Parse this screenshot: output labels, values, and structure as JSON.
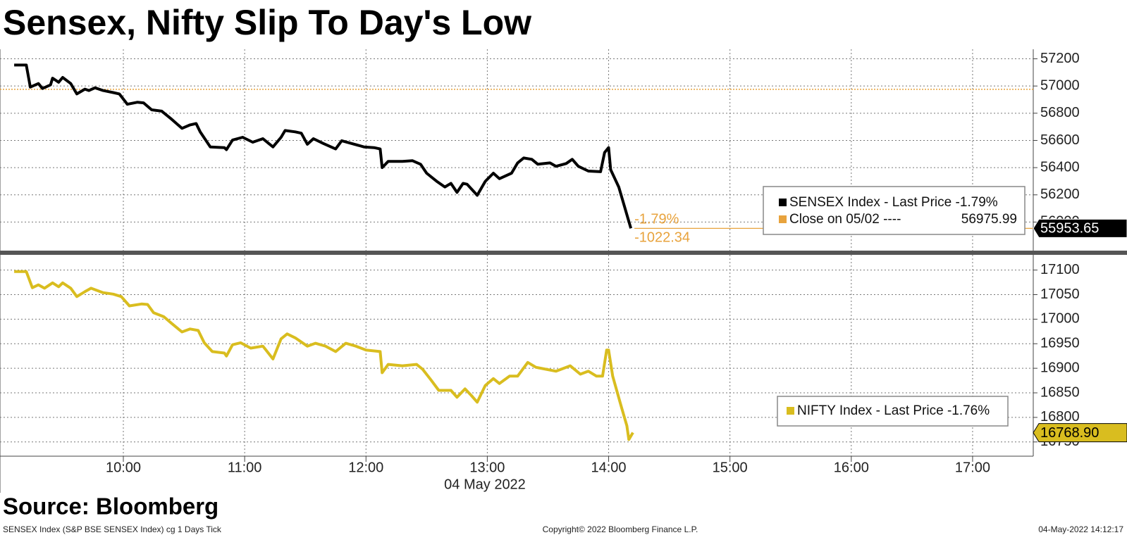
{
  "title": "Sensex, Nifty Slip To Day's Low",
  "source": "Source: Bloomberg",
  "footer": {
    "left": "SENSEX Index (S&P BSE SENSEX Index) cg 1 Days  Tick",
    "center": "Copyright© 2022 Bloomberg Finance L.P.",
    "right": "04-May-2022 14:12:17"
  },
  "chart_data": [
    {
      "type": "line",
      "xlim": [
        "08:59",
        "17:30"
      ],
      "ylim": [
        55790,
        57270
      ],
      "yticks": [
        56000,
        56200,
        56400,
        56600,
        56800,
        57000,
        57200
      ],
      "grid": true,
      "series": [
        {
          "name": "SENSEX Index - Last Price -1.79%",
          "color": "#000000",
          "x": [
            "09:06",
            "09:12",
            "09:14",
            "09:18",
            "09:20",
            "09:24",
            "09:25",
            "09:28",
            "09:30",
            "09:34",
            "09:37",
            "09:41",
            "09:43",
            "09:46",
            "09:50",
            "09:55",
            "09:58",
            "10:02",
            "10:07",
            "10:10",
            "10:14",
            "10:19",
            "10:24",
            "10:29",
            "10:33",
            "10:36",
            "10:38",
            "10:43",
            "10:50",
            "10:51",
            "10:54",
            "10:59",
            "11:04",
            "11:09",
            "11:14",
            "11:18",
            "11:20",
            "11:25",
            "11:28",
            "11:31",
            "11:34",
            "11:39",
            "11:45",
            "11:48",
            "11:53",
            "11:59",
            "12:04",
            "12:07",
            "12:08",
            "12:11",
            "12:18",
            "12:23",
            "12:27",
            "12:30",
            "12:35",
            "12:39",
            "12:42",
            "12:45",
            "12:48",
            "12:50",
            "12:55",
            "12:59",
            "13:03",
            "13:06",
            "13:12",
            "13:15",
            "13:18",
            "13:22",
            "13:25",
            "13:31",
            "13:34",
            "13:39",
            "13:42",
            "13:45",
            "13:50",
            "13:56",
            "13:58",
            "14:00",
            "14:01",
            "14:05",
            "14:08",
            "14:10",
            "14:11"
          ],
          "values": [
            57154,
            57154,
            56992,
            57018,
            56982,
            57008,
            57058,
            57028,
            57063,
            57018,
            56942,
            56977,
            56967,
            56987,
            56967,
            56952,
            56942,
            56866,
            56881,
            56876,
            56825,
            56815,
            56754,
            56689,
            56714,
            56724,
            56663,
            56552,
            56547,
            56532,
            56603,
            56623,
            56587,
            56613,
            56552,
            56623,
            56673,
            56663,
            56653,
            56572,
            56613,
            56577,
            56537,
            56598,
            56577,
            56552,
            56547,
            56537,
            56400,
            56446,
            56446,
            56451,
            56425,
            56359,
            56299,
            56258,
            56284,
            56218,
            56284,
            56278,
            56197,
            56299,
            56359,
            56319,
            56359,
            56435,
            56471,
            56461,
            56425,
            56435,
            56410,
            56430,
            56461,
            56410,
            56375,
            56370,
            56511,
            56547,
            56385,
            56258,
            56106,
            56005,
            55954
          ]
        }
      ],
      "reference_line": {
        "name": "Close on 05/02 ----",
        "value": 56975.99,
        "color": "#e8a33d"
      },
      "last_value": 55953.65,
      "annotations": [
        "-1.79%",
        "-1022.34"
      ]
    },
    {
      "type": "line",
      "xlim": [
        "08:59",
        "17:30"
      ],
      "ylim": [
        16721,
        17131
      ],
      "yticks": [
        16750,
        16800,
        16850,
        16900,
        16950,
        17000,
        17050,
        17100
      ],
      "grid": true,
      "xticks": [
        "10:00",
        "11:00",
        "12:00",
        "13:00",
        "14:00",
        "15:00",
        "16:00",
        "17:00"
      ],
      "x_label": "04 May 2022",
      "series": [
        {
          "name": "NIFTY Index - Last Price -1.76%",
          "color": "#d9bd1f",
          "x": [
            "09:06",
            "09:12",
            "09:15",
            "09:18",
            "09:21",
            "09:25",
            "09:28",
            "09:30",
            "09:34",
            "09:37",
            "09:41",
            "09:44",
            "09:50",
            "09:55",
            "09:59",
            "10:03",
            "10:09",
            "10:12",
            "10:15",
            "10:20",
            "10:24",
            "10:29",
            "10:33",
            "10:37",
            "10:40",
            "10:44",
            "10:50",
            "10:51",
            "10:54",
            "10:58",
            "11:03",
            "11:09",
            "11:14",
            "11:18",
            "11:21",
            "11:25",
            "11:31",
            "11:35",
            "11:40",
            "11:45",
            "11:50",
            "11:55",
            "12:00",
            "12:07",
            "12:08",
            "12:11",
            "12:18",
            "12:25",
            "12:28",
            "12:32",
            "12:36",
            "12:42",
            "12:45",
            "12:49",
            "12:52",
            "12:55",
            "12:59",
            "13:03",
            "13:06",
            "13:11",
            "13:15",
            "13:20",
            "13:24",
            "13:29",
            "13:34",
            "13:41",
            "13:46",
            "13:50",
            "13:54",
            "13:57",
            "13:59",
            "14:00",
            "14:02",
            "14:06",
            "14:09",
            "14:10",
            "14:12"
          ],
          "values": [
            17097,
            17097,
            17064,
            17070,
            17063,
            17074,
            17066,
            17074,
            17063,
            17046,
            17056,
            17063,
            17054,
            17051,
            17046,
            17027,
            17031,
            17030,
            17013,
            17005,
            16991,
            16974,
            16980,
            16977,
            16952,
            16934,
            16931,
            16925,
            16948,
            16952,
            16941,
            16945,
            16919,
            16960,
            16970,
            16962,
            16945,
            16951,
            16945,
            16934,
            16951,
            16945,
            16937,
            16934,
            16891,
            16908,
            16905,
            16908,
            16898,
            16877,
            16855,
            16855,
            16841,
            16858,
            16845,
            16831,
            16865,
            16879,
            16869,
            16884,
            16884,
            16912,
            16902,
            16898,
            16894,
            16905,
            16888,
            16894,
            16884,
            16884,
            16937,
            16937,
            16884,
            16826,
            16783,
            16755,
            16769
          ]
        }
      ],
      "last_value": {
        "value": 16768.9,
        "label": "16768.90"
      }
    }
  ]
}
